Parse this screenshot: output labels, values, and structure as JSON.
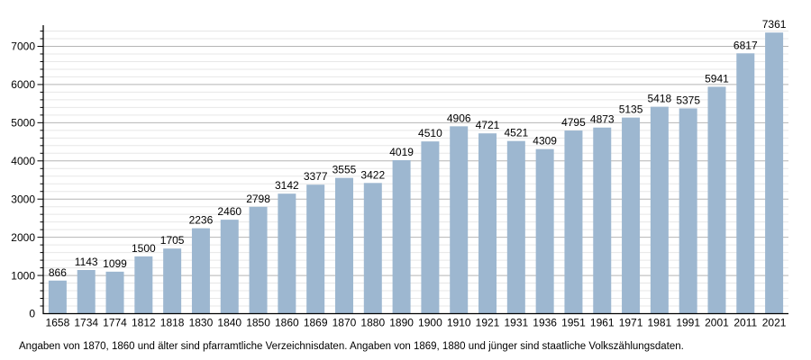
{
  "chart_data": {
    "type": "bar",
    "title": "",
    "xlabel": "",
    "ylabel": "",
    "categories": [
      "1658",
      "1734",
      "1774",
      "1812",
      "1818",
      "1830",
      "1840",
      "1850",
      "1860",
      "1869",
      "1870",
      "1880",
      "1890",
      "1900",
      "1910",
      "1921",
      "1931",
      "1936",
      "1951",
      "1961",
      "1971",
      "1981",
      "1991",
      "2001",
      "2011",
      "2021"
    ],
    "values": [
      866,
      1143,
      1099,
      1500,
      1705,
      2236,
      2460,
      2798,
      3142,
      3377,
      3555,
      3422,
      4019,
      4510,
      4906,
      4721,
      4521,
      4309,
      4795,
      4873,
      5135,
      5418,
      5375,
      5941,
      6817,
      7361
    ],
    "ylim": [
      0,
      7500
    ],
    "y_major_ticks": [
      0,
      1000,
      2000,
      3000,
      4000,
      5000,
      6000,
      7000
    ],
    "y_minor_step": 200,
    "grid": "on",
    "legend": "none",
    "value_labels_shown": true
  },
  "footnote": "Angaben von 1870, 1860 und älter sind pfarramtliche Verzeichnisdaten. Angaben von 1869, 1880 und jünger sind staatliche Volkszählungsdaten.",
  "colors": {
    "bar_fill": "#9db7d0",
    "grid_minor": "#e7e7e7",
    "grid_major": "#b5b5b5",
    "axis": "#000000",
    "text": "#000000",
    "background": "#ffffff"
  }
}
